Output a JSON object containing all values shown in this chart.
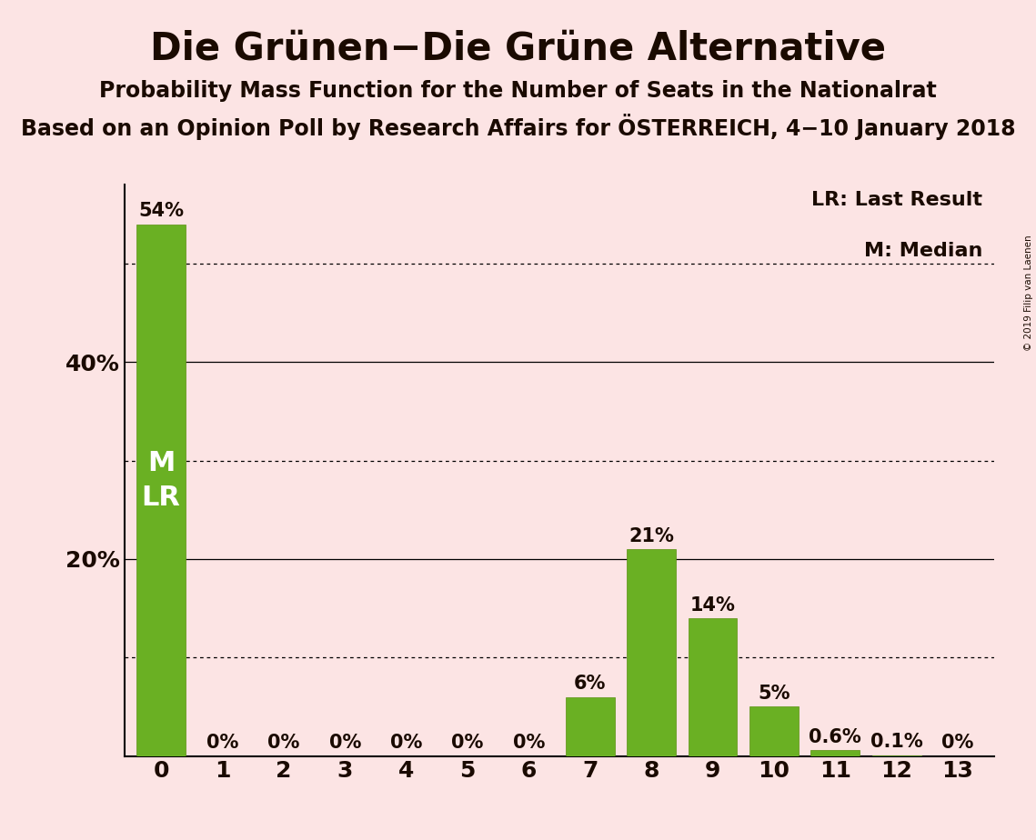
{
  "title": "Die Grünen−Die Grüne Alternative",
  "subtitle1": "Probability Mass Function for the Number of Seats in the Nationalrat",
  "subtitle2": "Based on an Opinion Poll by Research Affairs for ÖSTERREICH, 4−10 January 2018",
  "watermark": "© 2019 Filip van Laenen",
  "seats": [
    0,
    1,
    2,
    3,
    4,
    5,
    6,
    7,
    8,
    9,
    10,
    11,
    12,
    13
  ],
  "values": [
    54,
    0,
    0,
    0,
    0,
    0,
    0,
    6,
    21,
    14,
    5,
    0.6,
    0.1,
    0
  ],
  "labels": [
    "54%",
    "0%",
    "0%",
    "0%",
    "0%",
    "0%",
    "0%",
    "6%",
    "21%",
    "14%",
    "5%",
    "0.6%",
    "0.1%",
    "0%"
  ],
  "bar_color": "#6ab023",
  "bar_edge_color": "#5a9010",
  "background_color": "#fce4e4",
  "text_color": "#1a0a00",
  "ylim_max": 58,
  "ytick_labeled": [
    20,
    40
  ],
  "ytick_solid": [
    20,
    40
  ],
  "ytick_dotted": [
    10,
    30,
    50
  ],
  "legend_lr": "LR: Last Result",
  "legend_m": "M: Median",
  "title_fontsize": 30,
  "subtitle_fontsize": 17,
  "legend_fontsize": 16,
  "axis_fontsize": 18,
  "bar_label_fontsize": 15,
  "inner_label_fontsize": 22,
  "zero_label_fontsize": 15
}
